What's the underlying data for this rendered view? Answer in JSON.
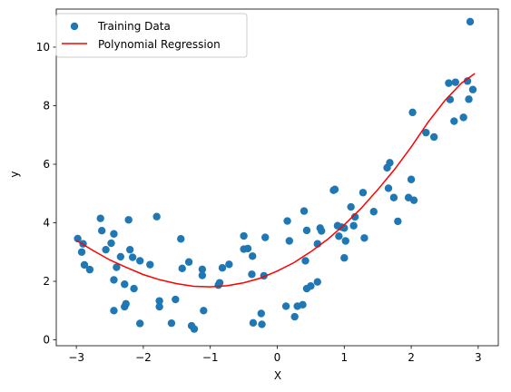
{
  "chart_data": {
    "type": "scatter",
    "title": "",
    "xlabel": "X",
    "ylabel": "y",
    "xlim": [
      -3.3,
      3.3
    ],
    "ylim": [
      -0.2,
      11.3
    ],
    "xticks": [
      -3,
      -2,
      -1,
      0,
      1,
      2,
      3
    ],
    "yticks": [
      0,
      2,
      4,
      6,
      8,
      10
    ],
    "grid": false,
    "legend_position": "upper left",
    "series": [
      {
        "name": "Training Data",
        "kind": "scatter",
        "color": "#1f77b4",
        "points": [
          [
            -2.98,
            3.46
          ],
          [
            -2.92,
            3.0
          ],
          [
            -2.9,
            3.28
          ],
          [
            -2.88,
            2.56
          ],
          [
            -2.8,
            2.4
          ],
          [
            -2.64,
            4.15
          ],
          [
            -2.62,
            3.73
          ],
          [
            -2.56,
            3.08
          ],
          [
            -2.48,
            3.3
          ],
          [
            -2.44,
            3.62
          ],
          [
            -2.44,
            2.05
          ],
          [
            -2.44,
            1.0
          ],
          [
            -2.4,
            2.48
          ],
          [
            -2.34,
            2.84
          ],
          [
            -2.28,
            1.9
          ],
          [
            -2.28,
            1.13
          ],
          [
            -2.26,
            1.23
          ],
          [
            -2.22,
            4.1
          ],
          [
            -2.2,
            3.08
          ],
          [
            -2.16,
            2.82
          ],
          [
            -2.14,
            1.75
          ],
          [
            -2.05,
            2.7
          ],
          [
            -2.05,
            0.56
          ],
          [
            -1.9,
            2.57
          ],
          [
            -1.8,
            4.21
          ],
          [
            -1.76,
            1.33
          ],
          [
            -1.76,
            1.13
          ],
          [
            -1.58,
            0.57
          ],
          [
            -1.52,
            1.38
          ],
          [
            -1.44,
            3.45
          ],
          [
            -1.42,
            2.44
          ],
          [
            -1.32,
            2.66
          ],
          [
            -1.28,
            0.48
          ],
          [
            -1.24,
            0.37
          ],
          [
            -1.12,
            2.41
          ],
          [
            -1.12,
            2.2
          ],
          [
            -1.1,
            1.0
          ],
          [
            -0.88,
            1.87
          ],
          [
            -0.86,
            1.95
          ],
          [
            -0.82,
            2.46
          ],
          [
            -0.72,
            2.58
          ],
          [
            -0.5,
            3.55
          ],
          [
            -0.5,
            3.1
          ],
          [
            -0.44,
            3.12
          ],
          [
            -0.38,
            2.24
          ],
          [
            -0.37,
            2.86
          ],
          [
            -0.36,
            0.58
          ],
          [
            -0.24,
            0.9
          ],
          [
            -0.23,
            0.53
          ],
          [
            -0.2,
            2.19
          ],
          [
            -0.18,
            3.5
          ],
          [
            0.15,
            4.06
          ],
          [
            0.13,
            1.15
          ],
          [
            0.18,
            3.38
          ],
          [
            0.26,
            0.79
          ],
          [
            0.3,
            1.15
          ],
          [
            0.38,
            1.2
          ],
          [
            0.4,
            4.4
          ],
          [
            0.42,
            2.7
          ],
          [
            0.44,
            1.75
          ],
          [
            0.44,
            3.74
          ],
          [
            0.5,
            1.84
          ],
          [
            0.6,
            3.28
          ],
          [
            0.6,
            1.98
          ],
          [
            0.64,
            3.82
          ],
          [
            0.66,
            3.72
          ],
          [
            0.84,
            5.11
          ],
          [
            0.86,
            5.14
          ],
          [
            0.9,
            3.9
          ],
          [
            0.92,
            3.54
          ],
          [
            0.96,
            3.85
          ],
          [
            1.0,
            2.8
          ],
          [
            1.0,
            3.82
          ],
          [
            1.02,
            3.38
          ],
          [
            1.1,
            4.54
          ],
          [
            1.14,
            3.9
          ],
          [
            1.16,
            4.2
          ],
          [
            1.28,
            5.03
          ],
          [
            1.3,
            3.48
          ],
          [
            1.44,
            4.38
          ],
          [
            1.64,
            5.88
          ],
          [
            1.66,
            5.18
          ],
          [
            1.68,
            6.05
          ],
          [
            1.74,
            4.86
          ],
          [
            1.8,
            4.05
          ],
          [
            1.96,
            4.86
          ],
          [
            2.0,
            5.48
          ],
          [
            2.02,
            7.77
          ],
          [
            2.04,
            4.77
          ],
          [
            2.22,
            7.08
          ],
          [
            2.34,
            6.93
          ],
          [
            2.56,
            8.77
          ],
          [
            2.58,
            8.21
          ],
          [
            2.64,
            7.47
          ],
          [
            2.66,
            8.8
          ],
          [
            2.78,
            7.6
          ],
          [
            2.84,
            8.84
          ],
          [
            2.86,
            8.22
          ],
          [
            2.88,
            10.87
          ],
          [
            2.92,
            8.55
          ]
        ]
      },
      {
        "name": "Polynomial Regression",
        "kind": "line",
        "color": "#ff0000",
        "points": [
          [
            -3.0,
            3.4
          ],
          [
            -2.75,
            3.05
          ],
          [
            -2.5,
            2.73
          ],
          [
            -2.25,
            2.47
          ],
          [
            -2.0,
            2.23
          ],
          [
            -1.75,
            2.05
          ],
          [
            -1.5,
            1.92
          ],
          [
            -1.25,
            1.83
          ],
          [
            -1.0,
            1.81
          ],
          [
            -0.75,
            1.85
          ],
          [
            -0.5,
            1.95
          ],
          [
            -0.25,
            2.11
          ],
          [
            0.0,
            2.35
          ],
          [
            0.25,
            2.64
          ],
          [
            0.5,
            3.01
          ],
          [
            0.75,
            3.43
          ],
          [
            1.0,
            3.93
          ],
          [
            1.25,
            4.49
          ],
          [
            1.5,
            5.13
          ],
          [
            1.75,
            5.82
          ],
          [
            2.0,
            6.59
          ],
          [
            2.25,
            7.43
          ],
          [
            2.5,
            8.17
          ],
          [
            2.75,
            8.77
          ],
          [
            2.95,
            9.1
          ]
        ]
      }
    ]
  }
}
